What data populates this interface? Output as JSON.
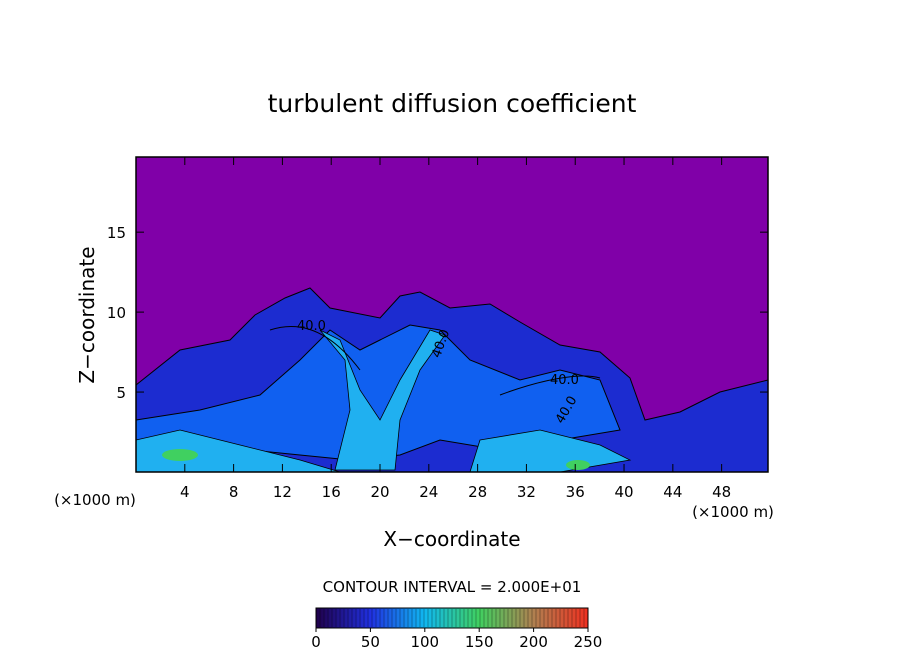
{
  "chart_data": {
    "type": "contour",
    "title": "turbulent diffusion coefficient",
    "x_label": "X−coordinate",
    "y_label": "Z−coordinate",
    "x_unit": "(×1000 m)",
    "y_unit": "(×1000 m)",
    "xlim": [
      0,
      51.8
    ],
    "xticks": [
      4,
      8,
      12,
      16,
      20,
      24,
      28,
      32,
      36,
      40,
      44,
      48
    ],
    "ylim": [
      0,
      19.7
    ],
    "yticks": [
      5,
      10,
      15
    ],
    "contour_interval_label": "CONTOUR INTERVAL = 2.000E+01",
    "contour_labels": [
      "40.0",
      "40.0",
      "40.0",
      "40.0"
    ],
    "colorbar": {
      "lim": [
        0,
        250
      ],
      "ticks": [
        0,
        50,
        100,
        150,
        200,
        250
      ],
      "colors": [
        "#20004a",
        "#2030e0",
        "#10b8f0",
        "#40d060",
        "#b08050",
        "#f03020"
      ]
    }
  }
}
